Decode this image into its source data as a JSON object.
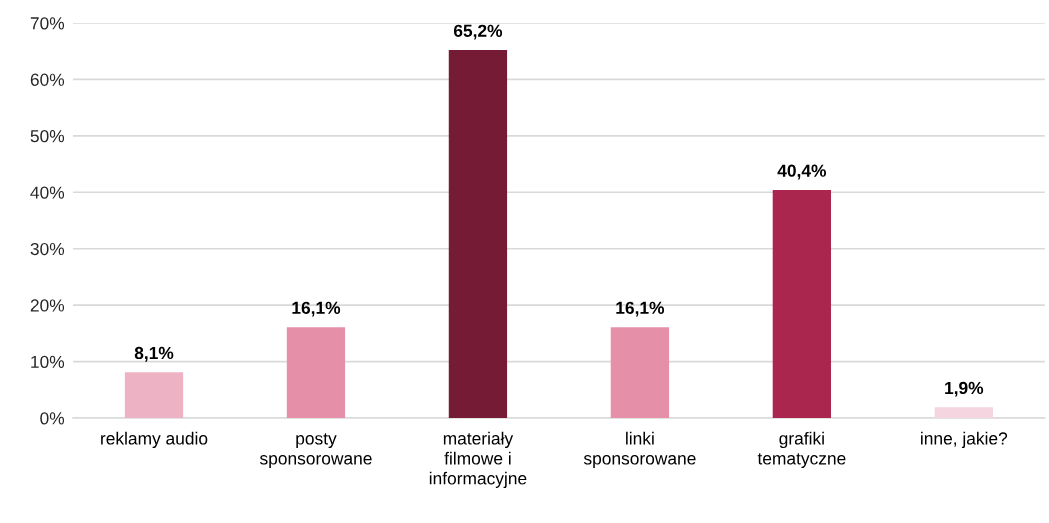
{
  "chart_data": {
    "type": "bar",
    "categories": [
      "reklamy audio",
      "posty\nsponsorowane",
      "materiały\nfilmowe i\ninformacyjne",
      "linki\nsponsorowane",
      "grafiki\ntematyczne",
      "inne, jakie?"
    ],
    "values": [
      8.1,
      16.1,
      65.2,
      16.1,
      40.4,
      1.9
    ],
    "colors": [
      "#edb3c5",
      "#e58fa9",
      "#751b36",
      "#e58fa9",
      "#ab264f",
      "#f5d5df"
    ],
    "value_labels": [
      "8,1%",
      "16,1%",
      "65,2%",
      "16,1%",
      "40,4%",
      "1,9%"
    ],
    "ylim": [
      0,
      70
    ],
    "yticks": [
      {
        "value": 0,
        "label": "0%"
      },
      {
        "value": 10,
        "label": "10%"
      },
      {
        "value": 20,
        "label": "20%"
      },
      {
        "value": 30,
        "label": "30%"
      },
      {
        "value": 40,
        "label": "40%"
      },
      {
        "value": 50,
        "label": "50%"
      },
      {
        "value": 60,
        "label": "60%"
      },
      {
        "value": 70,
        "label": "70%"
      }
    ],
    "grid": "y",
    "legend": false
  }
}
